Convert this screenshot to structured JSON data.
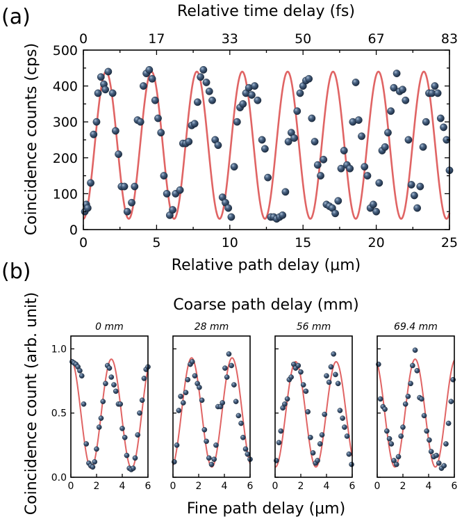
{
  "panel_a": {
    "label": "(a)",
    "chart_data": {
      "type": "scatter",
      "title": "",
      "xlabel": "Relative path delay (μm)",
      "ylabel": "Coincidence counts (cps)",
      "top_xlabel": "Relative time delay (fs)",
      "xlim": [
        0,
        25
      ],
      "ylim": [
        0,
        500
      ],
      "x_ticks": [
        "0",
        "5",
        "10",
        "15",
        "20",
        "25"
      ],
      "y_ticks": [
        "0",
        "100",
        "200",
        "300",
        "400",
        "500"
      ],
      "top_ticks": [
        "0",
        "17",
        "33",
        "50",
        "67",
        "83"
      ],
      "fit": {
        "period_um": 3.1,
        "min": 30,
        "max": 440
      },
      "points": {
        "x": [
          0.1,
          0.2,
          0.3,
          0.5,
          0.7,
          0.9,
          1.0,
          1.2,
          1.4,
          1.5,
          1.7,
          2.0,
          2.2,
          2.4,
          2.6,
          2.8,
          3.0,
          3.3,
          3.5,
          3.7,
          3.9,
          4.1,
          4.3,
          4.5,
          4.7,
          4.9,
          5.1,
          5.3,
          5.5,
          5.7,
          5.9,
          6.1,
          6.3,
          6.6,
          6.8,
          7.0,
          7.2,
          7.4,
          7.6,
          7.8,
          8.0,
          8.2,
          8.4,
          8.6,
          8.8,
          9.0,
          9.2,
          9.5,
          9.7,
          9.9,
          10.1,
          10.3,
          10.5,
          10.7,
          10.9,
          11.1,
          11.3,
          11.5,
          11.7,
          11.9,
          12.2,
          12.4,
          12.6,
          12.8,
          13.0,
          13.2,
          13.4,
          13.6,
          13.8,
          14.0,
          14.2,
          14.4,
          14.6,
          14.8,
          15.0,
          15.2,
          15.4,
          15.6,
          15.8,
          16.0,
          16.2,
          16.4,
          16.6,
          16.8,
          17.0,
          17.2,
          17.4,
          17.6,
          17.8,
          18.0,
          18.2,
          18.4,
          18.6,
          18.8,
          19.0,
          19.2,
          19.4,
          19.6,
          19.8,
          20.0,
          20.2,
          20.4,
          20.6,
          20.8,
          21.0,
          21.2,
          21.4,
          21.6,
          21.8,
          22.0,
          22.2,
          22.4,
          22.6,
          22.8,
          23.0,
          23.2,
          23.4,
          23.6,
          23.8,
          24.0,
          24.2,
          24.4,
          24.6,
          24.8,
          25.0
        ],
        "y": [
          50,
          70,
          60,
          130,
          265,
          300,
          380,
          425,
          405,
          390,
          440,
          380,
          275,
          210,
          120,
          120,
          50,
          75,
          120,
          305,
          300,
          400,
          435,
          445,
          420,
          360,
          310,
          270,
          150,
          100,
          40,
          55,
          100,
          110,
          240,
          240,
          245,
          290,
          295,
          355,
          425,
          445,
          410,
          385,
          360,
          250,
          235,
          90,
          75,
          60,
          35,
          175,
          300,
          340,
          350,
          380,
          395,
          375,
          400,
          360,
          250,
          225,
          145,
          35,
          35,
          30,
          35,
          40,
          105,
          245,
          270,
          255,
          330,
          380,
          400,
          415,
          420,
          310,
          245,
          180,
          150,
          195,
          70,
          65,
          60,
          45,
          80,
          170,
          220,
          180,
          170,
          300,
          410,
          305,
          260,
          175,
          150,
          60,
          70,
          50,
          130,
          220,
          230,
          270,
          330,
          395,
          435,
          385,
          390,
          360,
          250,
          125,
          95,
          60,
          120,
          230,
          300,
          380,
          380,
          400,
          380,
          310,
          285,
          250,
          165
        ],
        "marker_color": "#2a3f5c"
      }
    }
  },
  "panel_b": {
    "label": "(b)",
    "top_title": "Coarse path delay (mm)",
    "xlabel": "Fine path delay (μm)",
    "ylabel": "Coincidence count (arb. unit)",
    "chart_data": [
      {
        "type": "scatter",
        "title": "0 mm",
        "xlim": [
          0,
          6
        ],
        "ylim": [
          0,
          1.1
        ],
        "x_ticks": [
          "0",
          "2",
          "4",
          "6"
        ],
        "y_ticks": [
          "0.0",
          "0.5",
          "1.0"
        ],
        "fit": {
          "period_um": 3.15,
          "phase_um": 0.0,
          "min": 0.07,
          "max": 0.92
        },
        "points": {
          "x": [
            0.1,
            0.25,
            0.4,
            0.55,
            0.7,
            0.85,
            1.0,
            1.2,
            1.4,
            1.55,
            1.7,
            1.85,
            2.0,
            2.2,
            2.35,
            2.5,
            2.7,
            2.85,
            3.0,
            3.15,
            3.35,
            3.5,
            3.7,
            3.85,
            4.0,
            4.2,
            4.35,
            4.55,
            4.7,
            4.85,
            5.0,
            5.2,
            5.35,
            5.55,
            5.7,
            5.85,
            6.0
          ],
          "y": [
            0.9,
            0.89,
            0.88,
            0.86,
            0.83,
            0.79,
            0.57,
            0.26,
            0.11,
            0.09,
            0.08,
            0.12,
            0.22,
            0.39,
            0.46,
            0.59,
            0.73,
            0.87,
            0.85,
            0.78,
            0.72,
            0.67,
            0.57,
            0.57,
            0.38,
            0.31,
            0.17,
            0.07,
            0.06,
            0.07,
            0.15,
            0.33,
            0.5,
            0.6,
            0.77,
            0.84,
            0.86
          ]
        }
      },
      {
        "type": "scatter",
        "title": "28 mm",
        "xlim": [
          0,
          6
        ],
        "ylim": [
          0,
          1.1
        ],
        "x_ticks": [
          "0",
          "2",
          "4",
          "6"
        ],
        "y_ticks": [
          "0.0",
          "0.5",
          "1.0"
        ],
        "fit": {
          "period_um": 3.15,
          "phase_um": 1.45,
          "min": 0.08,
          "max": 0.93
        },
        "points": {
          "x": [
            0.1,
            0.3,
            0.45,
            0.6,
            0.8,
            1.0,
            1.15,
            1.35,
            1.5,
            1.7,
            1.9,
            2.05,
            2.25,
            2.45,
            2.6,
            2.8,
            3.0,
            3.2,
            3.35,
            3.5,
            3.7,
            3.85,
            4.05,
            4.2,
            4.35,
            4.55,
            4.75,
            4.9,
            5.1,
            5.3,
            5.45,
            5.65,
            5.8,
            6.0
          ],
          "y": [
            0.12,
            0.25,
            0.52,
            0.63,
            0.58,
            0.66,
            0.76,
            0.88,
            0.9,
            0.79,
            0.73,
            0.7,
            0.6,
            0.37,
            0.28,
            0.15,
            0.1,
            0.14,
            0.25,
            0.55,
            0.55,
            0.58,
            0.85,
            0.78,
            0.96,
            0.87,
            0.72,
            0.59,
            0.48,
            0.42,
            0.31,
            0.22,
            0.18,
            0.14
          ]
        }
      },
      {
        "type": "scatter",
        "title": "56 mm",
        "xlim": [
          0,
          6
        ],
        "ylim": [
          0,
          1.1
        ],
        "x_ticks": [
          "0",
          "2",
          "4",
          "6"
        ],
        "y_ticks": [
          "0.0",
          "0.5",
          "1.0"
        ],
        "fit": {
          "period_um": 3.15,
          "phase_um": 1.6,
          "min": 0.08,
          "max": 0.9
        },
        "points": {
          "x": [
            0.1,
            0.3,
            0.45,
            0.6,
            0.75,
            0.95,
            1.1,
            1.25,
            1.45,
            1.6,
            1.8,
            2.0,
            2.2,
            2.4,
            2.55,
            2.75,
            2.95,
            3.15,
            3.3,
            3.5,
            3.65,
            3.85,
            4.0,
            4.2,
            4.35,
            4.55,
            4.7,
            4.9,
            5.05,
            5.25,
            5.4,
            5.6,
            5.75,
            5.95
          ],
          "y": [
            0.13,
            0.27,
            0.36,
            0.54,
            0.57,
            0.61,
            0.76,
            0.78,
            0.88,
            0.85,
            0.87,
            0.82,
            0.72,
            0.67,
            0.51,
            0.31,
            0.19,
            0.11,
            0.13,
            0.26,
            0.33,
            0.49,
            0.79,
            0.74,
            0.86,
            0.96,
            0.8,
            0.73,
            0.52,
            0.46,
            0.39,
            0.32,
            0.18,
            0.1
          ]
        }
      },
      {
        "type": "scatter",
        "title": "69.4 mm",
        "xlim": [
          0,
          6
        ],
        "ylim": [
          0,
          1.1
        ],
        "x_ticks": [
          "0",
          "2",
          "4",
          "6"
        ],
        "y_ticks": [
          "0.0",
          "0.5",
          "1.0"
        ],
        "fit": {
          "period_um": 3.15,
          "phase_um": -0.2,
          "min": 0.08,
          "max": 0.92
        },
        "points": {
          "x": [
            0.1,
            0.25,
            0.45,
            0.6,
            0.75,
            0.95,
            1.1,
            1.3,
            1.5,
            1.65,
            1.85,
            2.0,
            2.2,
            2.4,
            2.6,
            2.75,
            2.95,
            3.1,
            3.3,
            3.45,
            3.65,
            3.85,
            4.05,
            4.2,
            4.4,
            4.6,
            4.8,
            5.0,
            5.2,
            5.35,
            5.55,
            5.75,
            5.9
          ],
          "y": [
            0.88,
            0.61,
            0.55,
            0.53,
            0.36,
            0.3,
            0.26,
            0.13,
            0.1,
            0.16,
            0.32,
            0.39,
            0.57,
            0.63,
            0.73,
            0.87,
            0.99,
            0.83,
            0.62,
            0.61,
            0.48,
            0.36,
            0.29,
            0.2,
            0.16,
            0.17,
            0.11,
            0.07,
            0.09,
            0.26,
            0.42,
            0.59,
            0.76
          ]
        }
      }
    ]
  }
}
